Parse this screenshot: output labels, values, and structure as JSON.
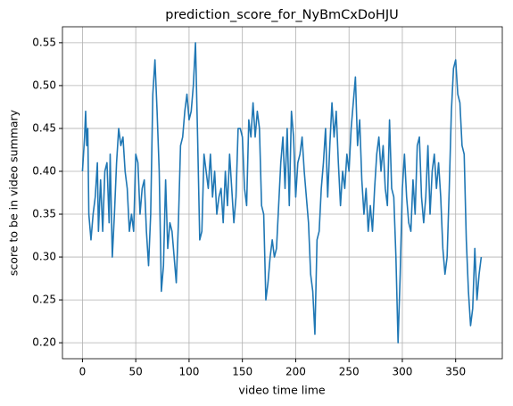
{
  "chart_data": {
    "type": "line",
    "title": "prediction_score_for_NyBmCxDoHJU",
    "x_label": "video time lime",
    "y_label": "score to be in video summary",
    "x": [
      0,
      2,
      3,
      4,
      5,
      6,
      8,
      10,
      12,
      14,
      15,
      17,
      19,
      21,
      23,
      25,
      26,
      28,
      30,
      32,
      34,
      36,
      38,
      40,
      42,
      44,
      46,
      48,
      50,
      52,
      54,
      56,
      58,
      60,
      62,
      64,
      66,
      68,
      70,
      72,
      74,
      76,
      78,
      80,
      82,
      84,
      86,
      88,
      90,
      92,
      94,
      96,
      98,
      100,
      102,
      104,
      106,
      108,
      110,
      112,
      114,
      116,
      118,
      120,
      122,
      124,
      126,
      128,
      130,
      132,
      134,
      136,
      138,
      140,
      142,
      144,
      146,
      148,
      150,
      152,
      154,
      156,
      158,
      160,
      162,
      164,
      166,
      168,
      170,
      172,
      174,
      176,
      178,
      180,
      182,
      184,
      186,
      188,
      190,
      192,
      194,
      196,
      198,
      200,
      202,
      204,
      206,
      208,
      210,
      212,
      214,
      216,
      218,
      220,
      222,
      224,
      226,
      228,
      230,
      232,
      234,
      236,
      238,
      240,
      242,
      244,
      246,
      248,
      250,
      252,
      254,
      256,
      258,
      260,
      262,
      264,
      266,
      268,
      270,
      272,
      274,
      276,
      278,
      280,
      282,
      284,
      286,
      288,
      290,
      292,
      294,
      296,
      298,
      300,
      302,
      304,
      306,
      308,
      310,
      312,
      314,
      316,
      318,
      320,
      322,
      324,
      326,
      328,
      330,
      332,
      334,
      336,
      338,
      340,
      342,
      344,
      346,
      348,
      350,
      352,
      354,
      356,
      358,
      360,
      362,
      364,
      366,
      368,
      370,
      372,
      374
    ],
    "series": [
      {
        "name": "prediction_score",
        "color": "#1f77b4",
        "values": [
          0.4,
          0.44,
          0.47,
          0.43,
          0.45,
          0.35,
          0.32,
          0.35,
          0.37,
          0.41,
          0.33,
          0.39,
          0.33,
          0.4,
          0.41,
          0.34,
          0.42,
          0.3,
          0.35,
          0.41,
          0.45,
          0.43,
          0.44,
          0.4,
          0.38,
          0.33,
          0.35,
          0.33,
          0.42,
          0.41,
          0.35,
          0.38,
          0.39,
          0.33,
          0.29,
          0.35,
          0.49,
          0.53,
          0.47,
          0.4,
          0.26,
          0.29,
          0.39,
          0.31,
          0.34,
          0.33,
          0.3,
          0.27,
          0.34,
          0.43,
          0.44,
          0.47,
          0.49,
          0.46,
          0.47,
          0.5,
          0.55,
          0.44,
          0.32,
          0.33,
          0.42,
          0.4,
          0.38,
          0.42,
          0.37,
          0.4,
          0.35,
          0.37,
          0.38,
          0.34,
          0.4,
          0.36,
          0.42,
          0.38,
          0.34,
          0.37,
          0.45,
          0.45,
          0.44,
          0.38,
          0.36,
          0.46,
          0.44,
          0.48,
          0.44,
          0.47,
          0.45,
          0.36,
          0.35,
          0.25,
          0.27,
          0.3,
          0.32,
          0.3,
          0.31,
          0.36,
          0.41,
          0.44,
          0.38,
          0.45,
          0.36,
          0.47,
          0.44,
          0.37,
          0.41,
          0.42,
          0.44,
          0.4,
          0.37,
          0.34,
          0.28,
          0.26,
          0.21,
          0.32,
          0.33,
          0.38,
          0.41,
          0.45,
          0.37,
          0.43,
          0.48,
          0.44,
          0.47,
          0.41,
          0.36,
          0.4,
          0.38,
          0.42,
          0.4,
          0.45,
          0.48,
          0.51,
          0.43,
          0.46,
          0.39,
          0.35,
          0.38,
          0.33,
          0.36,
          0.33,
          0.38,
          0.42,
          0.44,
          0.4,
          0.43,
          0.38,
          0.36,
          0.46,
          0.38,
          0.37,
          0.3,
          0.2,
          0.28,
          0.38,
          0.42,
          0.37,
          0.34,
          0.33,
          0.39,
          0.35,
          0.43,
          0.44,
          0.37,
          0.34,
          0.37,
          0.43,
          0.35,
          0.4,
          0.42,
          0.38,
          0.41,
          0.37,
          0.31,
          0.28,
          0.3,
          0.38,
          0.47,
          0.52,
          0.53,
          0.49,
          0.48,
          0.43,
          0.42,
          0.32,
          0.26,
          0.22,
          0.24,
          0.31,
          0.25,
          0.28,
          0.3
        ]
      }
    ],
    "xlim": [
      -18.75,
      393.75
    ],
    "xticks": [
      0,
      50,
      100,
      150,
      200,
      250,
      300,
      350
    ],
    "ylim": [
      0.1814,
      0.5686
    ],
    "yticks": [
      {
        "value": 0.2,
        "label": "0.20"
      },
      0.25,
      {
        "value": 0.3,
        "label": "0.30"
      },
      0.35,
      {
        "value": 0.4,
        "label": "0.40"
      },
      0.45,
      {
        "value": 0.5,
        "label": "0.50"
      },
      0.55
    ],
    "grid": true
  }
}
